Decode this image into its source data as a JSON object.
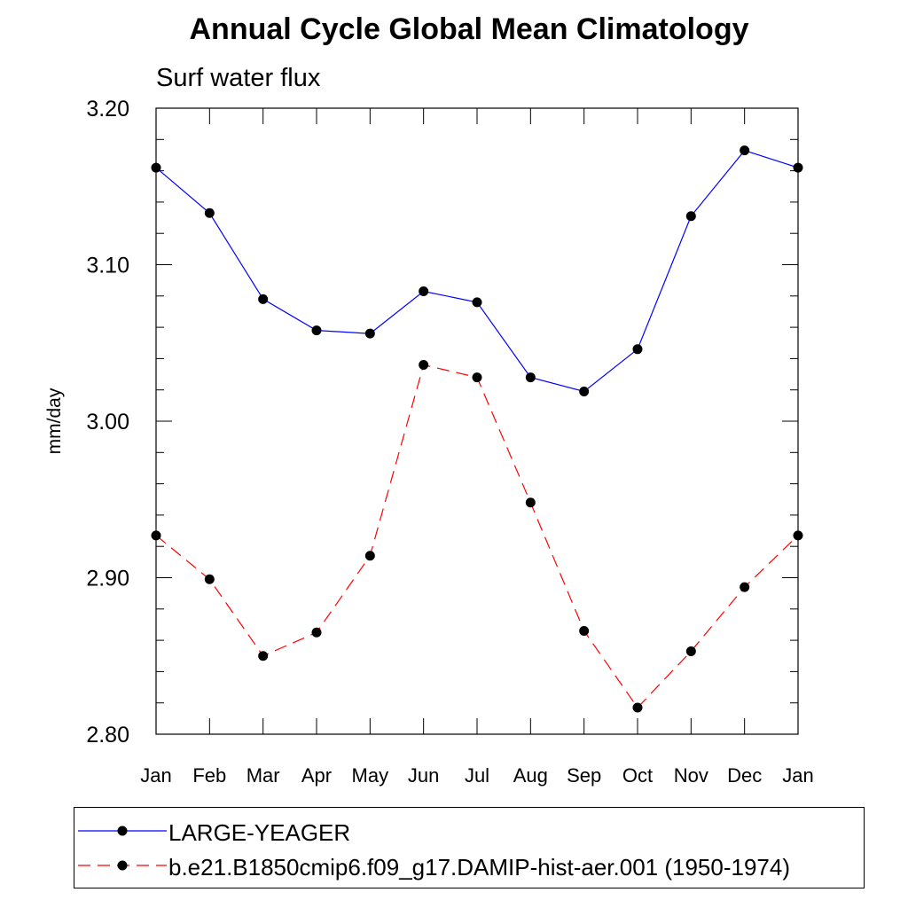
{
  "chart_data": {
    "type": "line",
    "title": "Annual Cycle Global Mean Climatology",
    "subtitle": "Surf water flux",
    "xlabel": "",
    "ylabel": "mm/day",
    "ylim": [
      2.8,
      3.2
    ],
    "yticks": [
      "3.20",
      "3.10",
      "3.00",
      "2.90",
      "2.80"
    ],
    "ytick_values": [
      3.2,
      3.1,
      3.0,
      2.9,
      2.8
    ],
    "categories": [
      "Jan",
      "Feb",
      "Mar",
      "Apr",
      "May",
      "Jun",
      "Jul",
      "Aug",
      "Sep",
      "Oct",
      "Nov",
      "Dec",
      "Jan"
    ],
    "grid": false,
    "legend_position": "bottom",
    "series": [
      {
        "name": "LARGE-YEAGER",
        "color": "#0000ff",
        "dash": "solid",
        "values": [
          3.162,
          3.133,
          3.078,
          3.058,
          3.056,
          3.083,
          3.076,
          3.028,
          3.019,
          3.046,
          3.131,
          3.173,
          3.162
        ]
      },
      {
        "name": "b.e21.B1850cmip6.f09_g17.DAMIP-hist-aer.001 (1950-1974)",
        "color": "#ff0000",
        "dash": "dashed",
        "values": [
          2.927,
          2.899,
          2.85,
          2.865,
          2.914,
          3.036,
          3.028,
          2.948,
          2.866,
          2.817,
          2.853,
          2.894,
          2.927
        ]
      }
    ]
  }
}
